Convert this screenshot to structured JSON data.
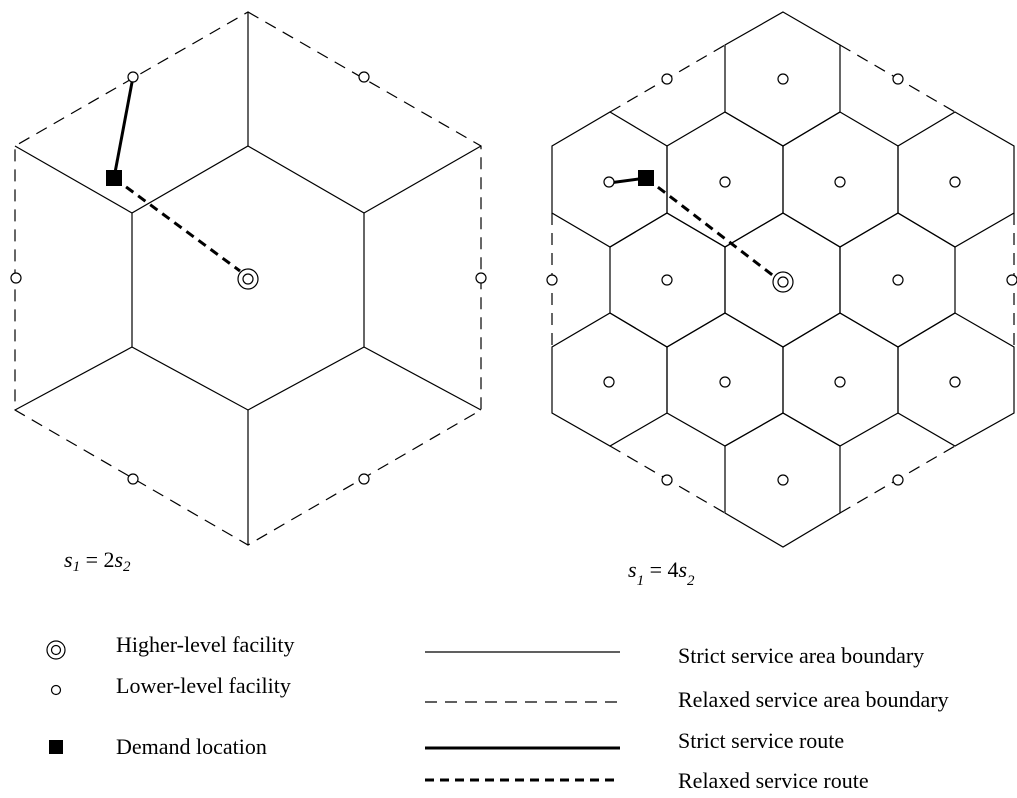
{
  "panels": [
    {
      "label": "s1 = 2s2",
      "ratio_label": "2"
    },
    {
      "label": "s1 = 4s2",
      "ratio_label": "4"
    }
  ],
  "legend": {
    "higher_level_facility": "Higher-level facility",
    "lower_level_facility": "Lower-level facility",
    "demand_location": "Demand location",
    "strict_boundary": "Strict service area boundary",
    "relaxed_boundary": "Relaxed service area boundary",
    "strict_route": "Strict service route",
    "relaxed_route": "Relaxed service route"
  },
  "icons": [
    "higher-level-facility-icon",
    "lower-level-facility-icon",
    "demand-location-icon"
  ]
}
